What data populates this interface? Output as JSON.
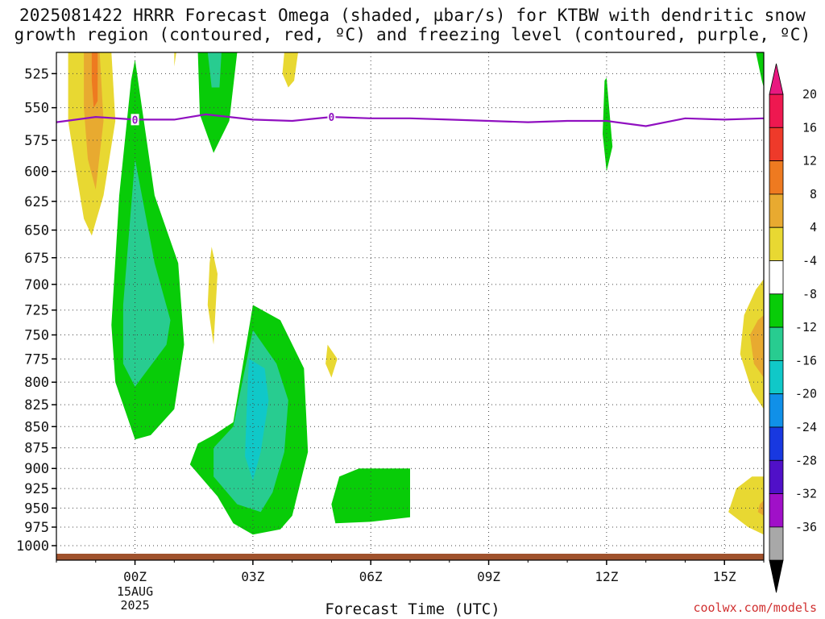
{
  "title_line1": "2025081422 HRRR Forecast Omega (shaded, µbar/s) for KTBW with dendritic snow",
  "title_line2": "growth region (contoured, red, ºC) and freezing level (contoured, purple, ºC)",
  "credit": "coolwx.com/models",
  "chart_data": {
    "type": "heatmap",
    "xlabel": "Forecast Time (UTC)",
    "x_range": [
      -2,
      16
    ],
    "x_ticks": [
      {
        "value": 0,
        "label": "00Z",
        "sub": [
          "15AUG",
          "2025"
        ]
      },
      {
        "value": 3,
        "label": "03Z"
      },
      {
        "value": 6,
        "label": "06Z"
      },
      {
        "value": 9,
        "label": "09Z"
      },
      {
        "value": 12,
        "label": "12Z"
      },
      {
        "value": 15,
        "label": "15Z"
      }
    ],
    "ylabel": "",
    "y_scale": "log-pressure",
    "y_range": [
      1020,
      510
    ],
    "y_ticks": [
      525,
      550,
      575,
      600,
      625,
      650,
      675,
      700,
      725,
      750,
      775,
      800,
      825,
      850,
      875,
      900,
      925,
      950,
      975,
      1000
    ],
    "grid": true,
    "colorbar": {
      "ticks": [
        "20",
        "16",
        "12",
        "8",
        "4",
        "-4",
        "-8",
        "-12",
        "-16",
        "-20",
        "-24",
        "-28",
        "-32",
        "-36"
      ],
      "colors": [
        "#ee1850",
        "#ee3a2a",
        "#ee7a20",
        "#e8aa30",
        "#e8d832",
        "#ffffff",
        "#08cc08",
        "#28cc90",
        "#10c8c8",
        "#1090e8",
        "#1838e0",
        "#5010c8",
        "#a010c8",
        "#a8a8a8"
      ]
    },
    "fill_colors": {
      "pos4": "#e8d832",
      "pos8": "#e8aa30",
      "pos12": "#ee7a20",
      "neg4": "#08cc08",
      "neg8": "#28cc90",
      "neg12": "#10c8c8"
    },
    "omega_regions": [
      {
        "level": "pos4",
        "points": [
          [
            -1.7,
            510
          ],
          [
            -0.6,
            510
          ],
          [
            -0.5,
            560
          ],
          [
            -0.8,
            620
          ],
          [
            -1.1,
            655
          ],
          [
            -1.3,
            640
          ],
          [
            -1.5,
            600
          ],
          [
            -1.7,
            560
          ]
        ]
      },
      {
        "level": "pos8",
        "points": [
          [
            -1.3,
            510
          ],
          [
            -0.9,
            510
          ],
          [
            -0.8,
            560
          ],
          [
            -1.0,
            615
          ],
          [
            -1.2,
            590
          ],
          [
            -1.3,
            550
          ]
        ]
      },
      {
        "level": "pos12",
        "points": [
          [
            -1.1,
            510
          ],
          [
            -0.95,
            510
          ],
          [
            -0.95,
            545
          ],
          [
            -1.05,
            550
          ],
          [
            -1.1,
            530
          ]
        ]
      },
      {
        "level": "neg4",
        "points": [
          [
            0.0,
            515
          ],
          [
            0.5,
            620
          ],
          [
            1.1,
            680
          ],
          [
            1.25,
            760
          ],
          [
            1.0,
            830
          ],
          [
            0.4,
            860
          ],
          [
            0.0,
            865
          ],
          [
            -0.5,
            800
          ],
          [
            -0.6,
            740
          ],
          [
            -0.4,
            620
          ],
          [
            -0.1,
            530
          ]
        ]
      },
      {
        "level": "neg8",
        "points": [
          [
            0.0,
            590
          ],
          [
            0.5,
            680
          ],
          [
            0.9,
            735
          ],
          [
            0.8,
            760
          ],
          [
            0.0,
            805
          ],
          [
            -0.3,
            780
          ],
          [
            -0.3,
            720
          ],
          [
            -0.1,
            630
          ]
        ]
      },
      {
        "level": "neg4",
        "points": [
          [
            1.6,
            510
          ],
          [
            2.6,
            510
          ],
          [
            2.4,
            560
          ],
          [
            2.0,
            585
          ],
          [
            1.65,
            555
          ]
        ]
      },
      {
        "level": "neg8",
        "points": [
          [
            1.85,
            510
          ],
          [
            2.2,
            510
          ],
          [
            2.15,
            535
          ],
          [
            1.95,
            535
          ]
        ]
      },
      {
        "level": "pos4",
        "points": [
          [
            1.95,
            665
          ],
          [
            2.1,
            690
          ],
          [
            2.0,
            760
          ],
          [
            1.85,
            720
          ],
          [
            1.9,
            680
          ]
        ]
      },
      {
        "level": "pos4",
        "points": [
          [
            1.0,
            510
          ],
          [
            1.05,
            510
          ],
          [
            1.0,
            520
          ]
        ]
      },
      {
        "level": "pos4",
        "points": [
          [
            3.8,
            510
          ],
          [
            4.15,
            510
          ],
          [
            4.05,
            530
          ],
          [
            3.9,
            535
          ],
          [
            3.75,
            525
          ]
        ]
      },
      {
        "level": "neg4",
        "points": [
          [
            2.0,
            860
          ],
          [
            2.5,
            845
          ],
          [
            3.0,
            720
          ],
          [
            3.7,
            735
          ],
          [
            4.3,
            785
          ],
          [
            4.4,
            880
          ],
          [
            4.0,
            960
          ],
          [
            3.7,
            978
          ],
          [
            3.0,
            985
          ],
          [
            2.5,
            970
          ],
          [
            2.1,
            935
          ],
          [
            1.4,
            895
          ],
          [
            1.6,
            870
          ]
        ]
      },
      {
        "level": "neg8",
        "points": [
          [
            2.0,
            875
          ],
          [
            2.5,
            850
          ],
          [
            3.0,
            745
          ],
          [
            3.6,
            780
          ],
          [
            3.9,
            820
          ],
          [
            3.8,
            880
          ],
          [
            3.5,
            930
          ],
          [
            3.2,
            955
          ],
          [
            2.6,
            945
          ],
          [
            2.0,
            910
          ]
        ]
      },
      {
        "level": "neg12",
        "points": [
          [
            2.9,
            775
          ],
          [
            3.3,
            785
          ],
          [
            3.4,
            820
          ],
          [
            3.2,
            880
          ],
          [
            3.0,
            915
          ],
          [
            2.8,
            885
          ],
          [
            2.85,
            820
          ]
        ]
      },
      {
        "level": "pos4",
        "points": [
          [
            4.9,
            760
          ],
          [
            5.15,
            775
          ],
          [
            5.0,
            795
          ],
          [
            4.85,
            780
          ]
        ]
      },
      {
        "level": "neg4",
        "points": [
          [
            5.2,
            910
          ],
          [
            5.7,
            900
          ],
          [
            7.0,
            900
          ],
          [
            7.0,
            962
          ],
          [
            6.0,
            968
          ],
          [
            5.1,
            970
          ],
          [
            5.0,
            945
          ]
        ]
      },
      {
        "level": "neg4",
        "points": [
          [
            11.95,
            530
          ],
          [
            12.0,
            528
          ],
          [
            12.15,
            580
          ],
          [
            12.0,
            600
          ],
          [
            11.9,
            570
          ]
        ]
      },
      {
        "level": "pos4",
        "points": [
          [
            16.1,
            695
          ],
          [
            16.1,
            830
          ],
          [
            15.7,
            810
          ],
          [
            15.4,
            770
          ],
          [
            15.5,
            730
          ],
          [
            15.8,
            705
          ]
        ]
      },
      {
        "level": "pos8",
        "points": [
          [
            16.1,
            730
          ],
          [
            16.1,
            795
          ],
          [
            15.75,
            780
          ],
          [
            15.65,
            750
          ],
          [
            15.85,
            735
          ]
        ]
      },
      {
        "level": "pos4",
        "points": [
          [
            16.1,
            910
          ],
          [
            16.1,
            985
          ],
          [
            15.6,
            975
          ],
          [
            15.1,
            955
          ],
          [
            15.3,
            925
          ],
          [
            15.7,
            910
          ]
        ]
      },
      {
        "level": "pos8",
        "points": [
          [
            16.1,
            940
          ],
          [
            16.1,
            960
          ],
          [
            15.85,
            955
          ],
          [
            15.9,
            945
          ]
        ]
      },
      {
        "level": "neg4",
        "points": [
          [
            15.8,
            510
          ],
          [
            16.1,
            510
          ],
          [
            16.1,
            535
          ],
          [
            15.95,
            530
          ]
        ]
      }
    ],
    "freezing_level": {
      "label": "0",
      "label_at_x": [
        0,
        5
      ],
      "x": [
        -2,
        -1,
        0,
        1,
        1.8,
        3,
        4,
        5,
        6,
        7,
        8,
        9,
        10,
        11,
        12,
        13,
        14,
        15,
        16
      ],
      "p": [
        561,
        557,
        559,
        559,
        555,
        559,
        560,
        557,
        558,
        558,
        559,
        560,
        561,
        560,
        560,
        564,
        558,
        559,
        558
      ]
    }
  }
}
